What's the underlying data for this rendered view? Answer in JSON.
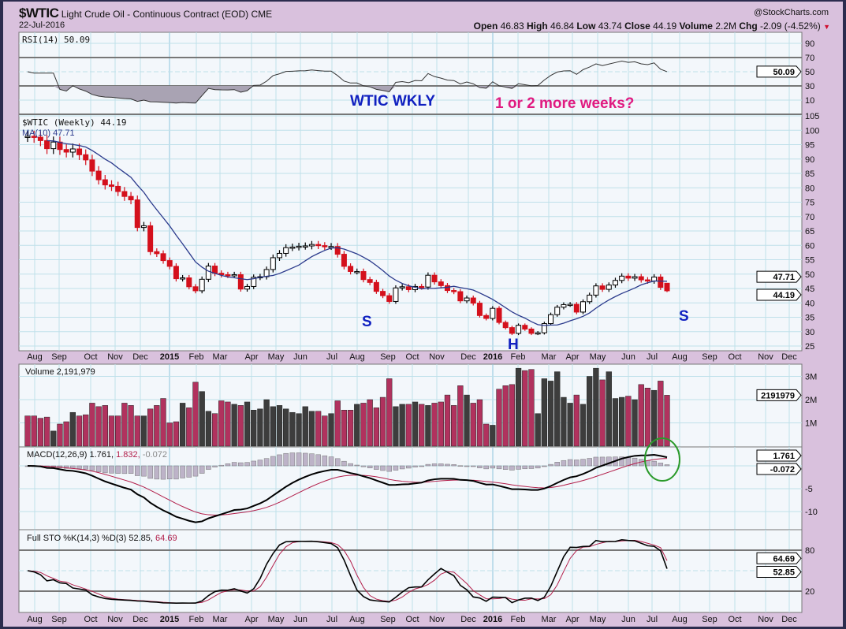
{
  "header": {
    "symbol": "$WTIC",
    "name": "Light Crude Oil - Continuous Contract (EOD)",
    "exchange": "CME",
    "watermark": "@StockCharts.com",
    "date": "22-Jul-2016",
    "open_label": "Open",
    "open": "46.83",
    "high_label": "High",
    "high": "46.84",
    "low_label": "Low",
    "low": "43.74",
    "close_label": "Close",
    "close": "44.19",
    "volume_label": "Volume",
    "volume": "2.2M",
    "chg_label": "Chg",
    "chg": "-2.09 (-4.52%)",
    "chg_arrow": "▼"
  },
  "annotations": {
    "wtic_wkly": "WTIC WKLY",
    "more_weeks": "1 or 2 more weeks?",
    "left_shoulder": "S",
    "head": "H",
    "right_shoulder": "S"
  },
  "colors": {
    "up": "#000000",
    "down": "#d4101c",
    "vol_up": "#3d3d3d",
    "vol_down": "#b1325e",
    "ma": "#2b3a8c",
    "grid": "#bfe0ea",
    "plot_bg": "#f3f7fb",
    "annotation_blue": "#1020c0",
    "annotation_pink": "#e01a80",
    "circle": "#2a9a2a"
  },
  "chart_data": {
    "type": "candlestick",
    "title": "$WTIC (Weekly) 44.19",
    "x_month_labels": [
      "Aug",
      "Sep",
      "Oct",
      "Nov",
      "Dec",
      "2015",
      "Feb",
      "Mar",
      "Apr",
      "May",
      "Jun",
      "Jul",
      "Aug",
      "Sep",
      "Oct",
      "Nov",
      "Dec",
      "2016",
      "Feb",
      "Mar",
      "Apr",
      "May",
      "Jun",
      "Jul",
      "Aug",
      "Sep",
      "Oct",
      "Nov",
      "Dec"
    ],
    "weekly_close": [
      97.9,
      97.6,
      96.4,
      93.6,
      95.9,
      93.3,
      92.4,
      93.5,
      91.5,
      89.7,
      85.8,
      82.8,
      81.0,
      80.5,
      78.7,
      77.0,
      75.8,
      66.2,
      66.8,
      57.8,
      57.1,
      54.7,
      52.7,
      48.4,
      48.7,
      45.6,
      44.2,
      48.2,
      52.8,
      50.3,
      49.8,
      49.6,
      49.8,
      44.8,
      45.7,
      48.9,
      49.1,
      51.6,
      55.7,
      57.2,
      59.2,
      59.4,
      59.7,
      59.8,
      60.3,
      59.9,
      59.6,
      59.6,
      56.9,
      52.7,
      50.9,
      50.9,
      48.1,
      47.1,
      44.0,
      42.5,
      40.5,
      45.2,
      45.6,
      44.6,
      45.7,
      45.5,
      49.6,
      47.3,
      46.0,
      44.3,
      43.9,
      40.7,
      41.7,
      39.9,
      35.6,
      34.6,
      38.1,
      33.2,
      31.4,
      29.4,
      32.2,
      30.9,
      29.4,
      29.6,
      32.8,
      35.9,
      38.5,
      39.4,
      39.5,
      36.8,
      40.4,
      42.7,
      45.9,
      44.7,
      46.2,
      47.8,
      49.3,
      48.6,
      49.1,
      48.0,
      47.6,
      48.99,
      45.4,
      44.19
    ],
    "last_bar": {
      "open": 46.83,
      "high": 46.84,
      "low": 43.74,
      "close": 44.19
    },
    "weekly_volume_millions": [
      1.3,
      1.3,
      1.2,
      1.25,
      0.65,
      0.95,
      1.05,
      1.45,
      1.3,
      1.35,
      1.85,
      1.7,
      1.75,
      1.3,
      1.3,
      1.85,
      1.75,
      1.3,
      1.3,
      1.6,
      1.75,
      2.05,
      1.0,
      1.05,
      1.85,
      1.65,
      2.75,
      2.35,
      1.5,
      1.4,
      1.95,
      1.9,
      1.8,
      1.75,
      1.9,
      1.55,
      1.6,
      2.0,
      1.7,
      1.75,
      1.6,
      1.45,
      1.4,
      1.7,
      1.5,
      1.5,
      1.3,
      1.4,
      1.95,
      1.55,
      1.55,
      1.8,
      1.85,
      2.0,
      1.65,
      2.1,
      2.9,
      1.7,
      1.8,
      1.8,
      1.9,
      1.8,
      1.75,
      1.85,
      1.9,
      2.2,
      1.75,
      2.6,
      2.2,
      1.85,
      2.0,
      0.95,
      0.9,
      2.45,
      2.6,
      2.65,
      3.35,
      3.25,
      3.3,
      1.4,
      2.9,
      2.8,
      3.2,
      2.1,
      1.85,
      2.2,
      1.8,
      3.0,
      3.35,
      2.85,
      3.2,
      2.05,
      2.1,
      2.15,
      2.0,
      2.65,
      2.5,
      2.4,
      2.8,
      2.19
    ],
    "price_axis": {
      "ylim": [
        25,
        105
      ],
      "ticks": [
        105,
        100,
        95,
        90,
        85,
        80,
        75,
        70,
        65,
        60,
        55,
        50,
        45,
        40,
        35,
        30,
        25
      ]
    },
    "panels": {
      "rsi": {
        "label": "RSI(14) 50.09",
        "ticks": [
          90,
          70,
          50,
          30,
          10
        ],
        "value": "50.09"
      },
      "price": {
        "label": "$WTIC (Weekly) 44.19",
        "ma_label": "MA(10) 47.71",
        "ma_value": "47.71",
        "close_value": "44.19"
      },
      "volume": {
        "label": "Volume 2,191,979",
        "ticks": [
          "3M",
          "2M",
          "1M"
        ],
        "value": "2191979"
      },
      "macd": {
        "label_main": "MACD(12,26,9) 1.761,",
        "label_signal": "1.832,",
        "label_hist": "-0.072",
        "ticks": [
          "-5",
          "-10"
        ],
        "value": "1.761",
        "hist_value": "-0.072"
      },
      "sto": {
        "label_main": "Full STO %K(14,3) %D(3) 52.85,",
        "label_d": "64.69",
        "ticks": [
          "80",
          "20"
        ],
        "k_value": "52.85",
        "d_value": "64.69"
      }
    }
  }
}
